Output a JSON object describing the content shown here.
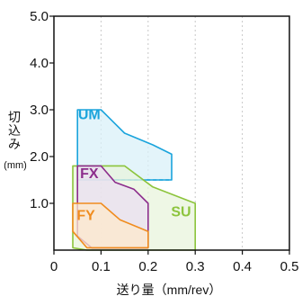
{
  "chart_data": {
    "type": "area",
    "xlabel": "送り量（mm/rev）",
    "ylabel_chars": [
      "切",
      "込",
      "み"
    ],
    "ylabel_unit": "(mm)",
    "xlim": [
      0,
      0.5
    ],
    "ylim": [
      0,
      5.0
    ],
    "x_ticks": [
      {
        "value": 0,
        "label": "0"
      },
      {
        "value": 0.1,
        "label": "0.1"
      },
      {
        "value": 0.2,
        "label": "0.2"
      },
      {
        "value": 0.3,
        "label": "0.3"
      },
      {
        "value": 0.4,
        "label": "0.4"
      },
      {
        "value": 0.5,
        "label": "0.5"
      }
    ],
    "y_ticks": [
      {
        "value": 1.0,
        "label": "1.0"
      },
      {
        "value": 2.0,
        "label": "2.0"
      },
      {
        "value": 3.0,
        "label": "3.0"
      },
      {
        "value": 4.0,
        "label": "4.0"
      },
      {
        "value": 5.0,
        "label": "5.0"
      }
    ],
    "grid": "vertical-dashed",
    "series": [
      {
        "name": "UM",
        "color": "#1aa4dc",
        "fill": "#daf0f8",
        "outline": [
          [
            0.05,
            1.5
          ],
          [
            0.05,
            3.0
          ],
          [
            0.1,
            3.0
          ],
          [
            0.15,
            2.5
          ],
          [
            0.21,
            2.25
          ],
          [
            0.25,
            2.05
          ],
          [
            0.25,
            1.5
          ]
        ],
        "dashed_edges": [
          [
            [
              0.05,
              1.5
            ],
            [
              0.25,
              1.5
            ]
          ]
        ],
        "label_at": [
          0.075,
          2.8
        ]
      },
      {
        "name": "SU",
        "color": "#8cc43c",
        "fill": "#e8f4dc",
        "outline": [
          [
            0.04,
            0.05
          ],
          [
            0.04,
            1.8
          ],
          [
            0.15,
            1.8
          ],
          [
            0.21,
            1.35
          ],
          [
            0.3,
            1.0
          ],
          [
            0.3,
            0.0
          ],
          [
            0.07,
            0.0
          ]
        ],
        "label_at": [
          0.27,
          0.72
        ]
      },
      {
        "name": "FX",
        "color": "#8c2d8c",
        "fill": "#eadff0",
        "outline": [
          [
            0.05,
            0.3
          ],
          [
            0.05,
            1.8
          ],
          [
            0.1,
            1.8
          ],
          [
            0.13,
            1.45
          ],
          [
            0.17,
            1.3
          ],
          [
            0.2,
            1.0
          ],
          [
            0.2,
            0.05
          ],
          [
            0.08,
            0.05
          ]
        ],
        "label_at": [
          0.075,
          1.54
        ]
      },
      {
        "name": "FY",
        "color": "#f08c1e",
        "fill": "#fde8cc",
        "outline": [
          [
            0.04,
            0.4
          ],
          [
            0.04,
            1.0
          ],
          [
            0.1,
            1.0
          ],
          [
            0.14,
            0.65
          ],
          [
            0.2,
            0.4
          ],
          [
            0.2,
            0.05
          ],
          [
            0.07,
            0.05
          ]
        ],
        "label_at": [
          0.068,
          0.64
        ]
      }
    ]
  }
}
